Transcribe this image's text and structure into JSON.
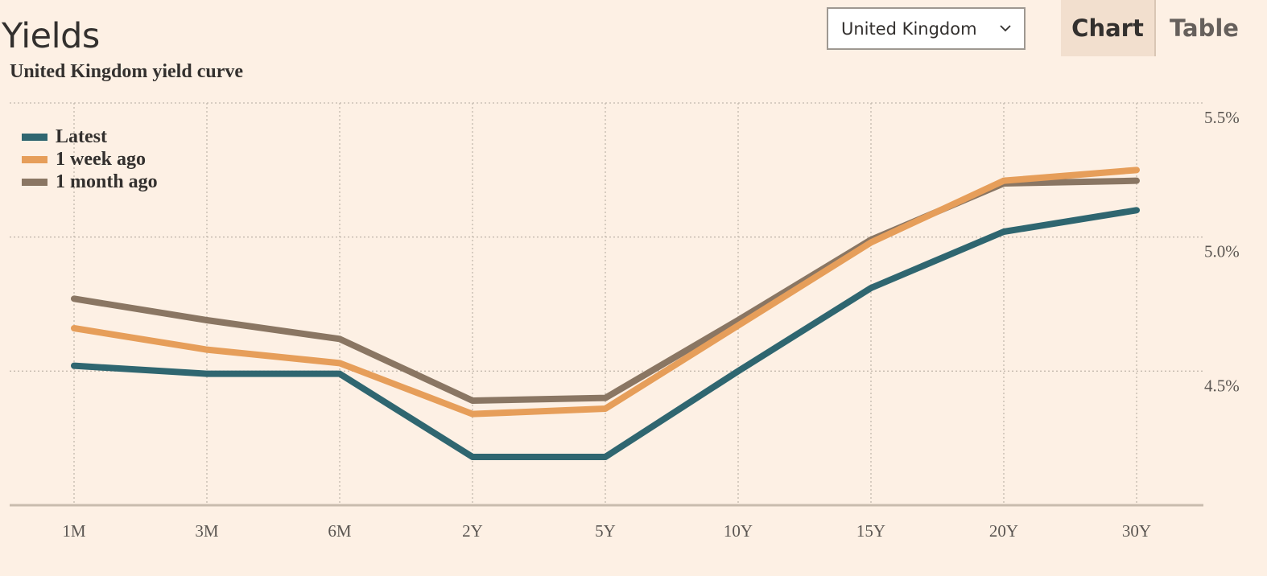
{
  "header": {
    "title": "Yields",
    "region_select": {
      "value": "United Kingdom",
      "icon": "chevron-down-icon"
    },
    "tabs": [
      {
        "label": "Chart",
        "active": true
      },
      {
        "label": "Table",
        "active": false
      }
    ]
  },
  "chart_data": {
    "type": "line",
    "title": "United Kingdom yield curve",
    "categories": [
      "1M",
      "3M",
      "6M",
      "2Y",
      "5Y",
      "10Y",
      "15Y",
      "20Y",
      "30Y"
    ],
    "series": [
      {
        "name": "Latest",
        "color": "#2f6670",
        "values": [
          4.52,
          4.49,
          4.49,
          4.18,
          4.18,
          4.5,
          4.81,
          5.02,
          5.1
        ]
      },
      {
        "name": "1 week ago",
        "color": "#e69e5a",
        "values": [
          4.66,
          4.58,
          4.53,
          4.34,
          4.36,
          4.67,
          4.98,
          5.21,
          5.25
        ]
      },
      {
        "name": "1 month ago",
        "color": "#8a7663",
        "values": [
          4.77,
          4.69,
          4.62,
          4.39,
          4.4,
          4.69,
          4.99,
          5.2,
          5.21
        ]
      }
    ],
    "y_ticks": [
      {
        "value": 4.5,
        "label": "4.5%"
      },
      {
        "value": 5.0,
        "label": "5.0%"
      },
      {
        "value": 5.5,
        "label": "5.5%"
      }
    ],
    "ylim": [
      4.0,
      5.5
    ],
    "grid": true,
    "legend_position": "top-left"
  }
}
